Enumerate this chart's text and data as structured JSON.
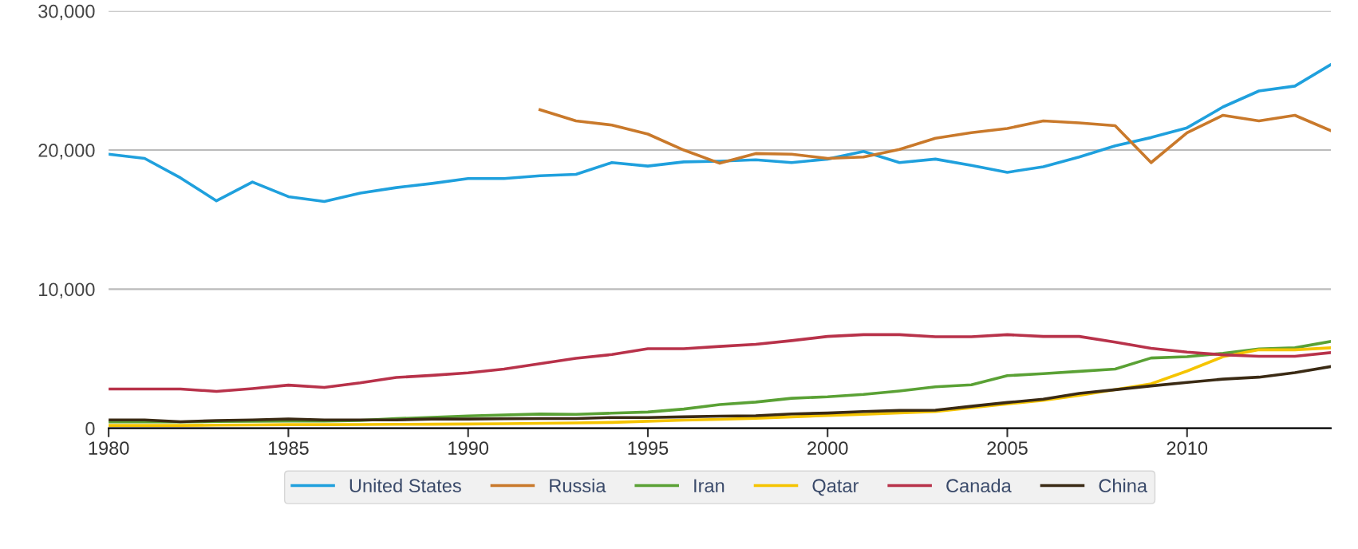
{
  "chart_data": {
    "type": "line",
    "x": [
      1980,
      1981,
      1982,
      1983,
      1984,
      1985,
      1986,
      1987,
      1988,
      1989,
      1990,
      1991,
      1992,
      1993,
      1994,
      1995,
      1996,
      1997,
      1998,
      1999,
      2000,
      2001,
      2002,
      2003,
      2004,
      2005,
      2006,
      2007,
      2008,
      2009,
      2010,
      2011,
      2012,
      2013,
      2014
    ],
    "series": [
      {
        "name": "United States",
        "color": "#1fa0dd",
        "values": [
          19700,
          19400,
          18000,
          16350,
          17700,
          16650,
          16300,
          16900,
          17300,
          17600,
          17950,
          17950,
          18150,
          18250,
          19100,
          18850,
          19150,
          19200,
          19300,
          19100,
          19350,
          19900,
          19100,
          19350,
          18900,
          18400,
          18800,
          19500,
          20300,
          20900,
          21600,
          23100,
          24250,
          24600,
          26150
        ]
      },
      {
        "name": "Russia",
        "color": "#c9792b",
        "values": [
          null,
          null,
          null,
          null,
          null,
          null,
          null,
          null,
          null,
          null,
          null,
          null,
          22900,
          22100,
          21800,
          21150,
          20000,
          19050,
          19750,
          19700,
          19400,
          19500,
          20050,
          20850,
          21250,
          21550,
          22100,
          21950,
          21750,
          19100,
          21250,
          22500,
          22100,
          22500,
          21400
        ]
      },
      {
        "name": "Iran",
        "color": "#5aa135",
        "values": [
          450,
          450,
          450,
          480,
          500,
          520,
          520,
          560,
          690,
          780,
          880,
          950,
          1020,
          1000,
          1080,
          1160,
          1380,
          1700,
          1880,
          2150,
          2260,
          2430,
          2680,
          2980,
          3120,
          3780,
          3920,
          4090,
          4250,
          5050,
          5140,
          5390,
          5700,
          5780,
          6240
        ]
      },
      {
        "name": "Qatar",
        "color": "#f5c400",
        "values": [
          200,
          200,
          200,
          220,
          240,
          260,
          260,
          270,
          280,
          290,
          300,
          320,
          350,
          380,
          420,
          500,
          580,
          640,
          720,
          820,
          920,
          1000,
          1100,
          1200,
          1470,
          1750,
          2000,
          2360,
          2780,
          3190,
          4110,
          5140,
          5640,
          5640,
          5780
        ]
      },
      {
        "name": "Canada",
        "color": "#b8324a",
        "values": [
          2820,
          2820,
          2820,
          2650,
          2850,
          3100,
          2930,
          3260,
          3650,
          3800,
          3980,
          4250,
          4640,
          5030,
          5300,
          5720,
          5720,
          5880,
          6030,
          6300,
          6600,
          6730,
          6730,
          6580,
          6580,
          6730,
          6600,
          6600,
          6190,
          5750,
          5470,
          5280,
          5170,
          5170,
          5440
        ]
      },
      {
        "name": "China",
        "color": "#3a2a14",
        "values": [
          600,
          600,
          470,
          550,
          600,
          660,
          600,
          600,
          600,
          660,
          660,
          680,
          700,
          700,
          770,
          770,
          820,
          870,
          900,
          1030,
          1090,
          1200,
          1280,
          1300,
          1580,
          1850,
          2090,
          2500,
          2770,
          3040,
          3290,
          3530,
          3670,
          4000,
          4430
        ]
      }
    ],
    "xlim": [
      1980,
      2014
    ],
    "xticks": [
      1980,
      1985,
      1990,
      1995,
      2000,
      2005,
      2010
    ],
    "ylim": [
      0,
      30000
    ],
    "yticks": [
      {
        "value": 0,
        "label": "0"
      },
      {
        "value": 10000,
        "label": "10,000"
      },
      {
        "value": 20000,
        "label": "20,000"
      },
      {
        "value": 30000,
        "label": "30,000"
      }
    ],
    "grid": "y",
    "legend": "bottom",
    "marker": "none",
    "line_style": "solid"
  }
}
